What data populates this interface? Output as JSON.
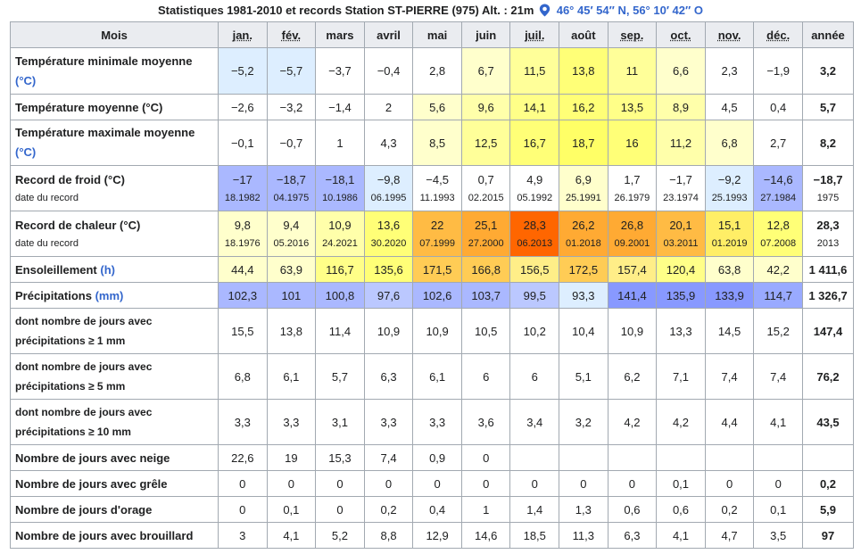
{
  "caption": {
    "text": "Statistiques 1981-2010 et records Station ST-PIERRE (975) Alt. : 21m",
    "coords": "46° 45′ 54″ N, 56° 10′ 42″ O",
    "pin_icon": "map-pin-icon",
    "coord_color": "#3366cc"
  },
  "header": {
    "label": "Mois",
    "months": [
      "jan.",
      "fév.",
      "mars",
      "avril",
      "mai",
      "juin",
      "juil.",
      "août",
      "sep.",
      "oct.",
      "nov.",
      "déc."
    ],
    "annual": "année"
  },
  "rows": [
    {
      "label": "Température minimale moyenne",
      "unit": "(°C)",
      "values": [
        "−5,2",
        "−5,7",
        "−3,7",
        "−0,4",
        "2,8",
        "6,7",
        "11,5",
        "13,8",
        "11",
        "6,6",
        "2,3",
        "−1,9"
      ],
      "annual": "3,2",
      "colors": [
        "#ddeeff",
        "#ddeeff",
        "#ffffff",
        "#ffffff",
        "#ffffff",
        "#ffffcc",
        "#ffff99",
        "#ffff77",
        "#ffff99",
        "#ffffcc",
        "#ffffff",
        "#ffffff"
      ]
    },
    {
      "label": "Température moyenne (°C)",
      "values": [
        "−2,6",
        "−3,2",
        "−1,4",
        "2",
        "5,6",
        "9,6",
        "14,1",
        "16,2",
        "13,5",
        "8,9",
        "4,5",
        "0,4"
      ],
      "annual": "5,7",
      "colors": [
        "#ffffff",
        "#ffffff",
        "#ffffff",
        "#ffffff",
        "#ffffcc",
        "#ffffaa",
        "#ffff88",
        "#ffff77",
        "#ffff88",
        "#ffffaa",
        "#ffffff",
        "#ffffff"
      ]
    },
    {
      "label": "Température maximale moyenne",
      "unit": "(°C)",
      "values": [
        "−0,1",
        "−0,7",
        "1",
        "4,3",
        "8,5",
        "12,5",
        "16,7",
        "18,7",
        "16",
        "11,2",
        "6,8",
        "2,7"
      ],
      "annual": "8,2",
      "colors": [
        "#ffffff",
        "#ffffff",
        "#ffffff",
        "#ffffff",
        "#ffffcc",
        "#ffff99",
        "#ffff77",
        "#ffff66",
        "#ffff77",
        "#ffffaa",
        "#ffffcc",
        "#ffffff"
      ]
    },
    {
      "label": "Record de froid (°C)",
      "sublabel": "date du record",
      "values": [
        "−17",
        "−18,7",
        "−18,1",
        "−9,8",
        "−4,5",
        "0,7",
        "4,9",
        "6,9",
        "1,7",
        "−1,7",
        "−9,2",
        "−14,6"
      ],
      "dates": [
        "18.1982",
        "04.1975",
        "10.1986",
        "06.1995",
        "11.1993",
        "02.2015",
        "05.1992",
        "25.1991",
        "26.1979",
        "23.1974",
        "25.1993",
        "27.1984"
      ],
      "annual": "−18,7",
      "annual_date": "1975",
      "colors": [
        "#aab8ff",
        "#aab8ff",
        "#aab8ff",
        "#ddeeff",
        "#ffffff",
        "#ffffff",
        "#ffffff",
        "#ffffcc",
        "#ffffff",
        "#ffffff",
        "#ddeeff",
        "#aab8ff"
      ]
    },
    {
      "label": "Record de chaleur (°C)",
      "sublabel": "date du record",
      "values": [
        "9,8",
        "9,4",
        "10,9",
        "13,6",
        "22",
        "25,1",
        "28,3",
        "26,2",
        "26,8",
        "20,1",
        "15,1",
        "12,8"
      ],
      "dates": [
        "18.1976",
        "05.2016",
        "24.2021",
        "30.2020",
        "07.1999",
        "27.2000",
        "06.2013",
        "01.2018",
        "09.2001",
        "03.2011",
        "01.2019",
        "07.2008"
      ],
      "annual": "28,3",
      "annual_date": "2013",
      "colors": [
        "#ffffcc",
        "#ffffcc",
        "#ffffaa",
        "#ffff77",
        "#ffbb44",
        "#ffaa33",
        "#ff6600",
        "#ffaa33",
        "#ffaa33",
        "#ffbb44",
        "#ffee66",
        "#ffff77"
      ]
    },
    {
      "label": "Ensoleillement",
      "unit": "(h)",
      "values": [
        "44,4",
        "63,9",
        "116,7",
        "135,6",
        "171,5",
        "166,8",
        "156,5",
        "172,5",
        "157,4",
        "120,4",
        "63,8",
        "42,2"
      ],
      "annual": "1 411,6",
      "colors": [
        "#ffffcc",
        "#ffffcc",
        "#ffff88",
        "#ffff77",
        "#ffcc55",
        "#ffcc55",
        "#ffee88",
        "#ffcc55",
        "#ffee88",
        "#ffff88",
        "#ffffcc",
        "#ffffcc"
      ]
    },
    {
      "label": "Précipitations",
      "unit": "(mm)",
      "values": [
        "102,3",
        "101",
        "100,8",
        "97,6",
        "102,6",
        "103,7",
        "99,5",
        "93,3",
        "141,4",
        "135,9",
        "133,9",
        "114,7"
      ],
      "annual": "1 326,7",
      "colors": [
        "#aab8ff",
        "#aab8ff",
        "#aab8ff",
        "#bbc8ff",
        "#aab8ff",
        "#aab8ff",
        "#bbc8ff",
        "#ddeeff",
        "#8899ff",
        "#8899ff",
        "#8899ff",
        "#99aaff"
      ]
    },
    {
      "label_small": "dont nombre de jours avec",
      "label_small2": "précipitations ≥ 1 mm",
      "values": [
        "15,5",
        "13,8",
        "11,4",
        "10,9",
        "10,9",
        "10,5",
        "10,2",
        "10,4",
        "10,9",
        "13,3",
        "14,5",
        "15,2"
      ],
      "annual": "147,4"
    },
    {
      "label_small": "dont nombre de jours avec",
      "label_small2": "précipitations ≥ 5 mm",
      "values": [
        "6,8",
        "6,1",
        "5,7",
        "6,3",
        "6,1",
        "6",
        "6",
        "5,1",
        "6,2",
        "7,1",
        "7,4",
        "7,4"
      ],
      "annual": "76,2"
    },
    {
      "label_small": "dont nombre de jours avec",
      "label_small2": "précipitations ≥ 10 mm",
      "values": [
        "3,3",
        "3,3",
        "3,1",
        "3,3",
        "3,3",
        "3,6",
        "3,4",
        "3,2",
        "4,2",
        "4,2",
        "4,4",
        "4,1"
      ],
      "annual": "43,5"
    },
    {
      "label": "Nombre de jours avec neige",
      "values": [
        "22,6",
        "19",
        "15,3",
        "7,4",
        "0,9",
        "0",
        "",
        "",
        "",
        "",
        "",
        ""
      ],
      "annual": ""
    },
    {
      "label": "Nombre de jours avec grêle",
      "values": [
        "0",
        "0",
        "0",
        "0",
        "0",
        "0",
        "0",
        "0",
        "0",
        "0,1",
        "0",
        "0"
      ],
      "annual": "0,2"
    },
    {
      "label": "Nombre de jours d'orage",
      "values": [
        "0",
        "0,1",
        "0",
        "0,2",
        "0,4",
        "1",
        "1,4",
        "1,3",
        "0,6",
        "0,6",
        "0,2",
        "0,1"
      ],
      "annual": "5,9"
    },
    {
      "label": "Nombre de jours avec brouillard",
      "values": [
        "3",
        "4,1",
        "5,2",
        "8,8",
        "12,9",
        "14,6",
        "18,5",
        "11,3",
        "6,3",
        "4,1",
        "4,7",
        "3,5"
      ],
      "annual": "97"
    }
  ]
}
